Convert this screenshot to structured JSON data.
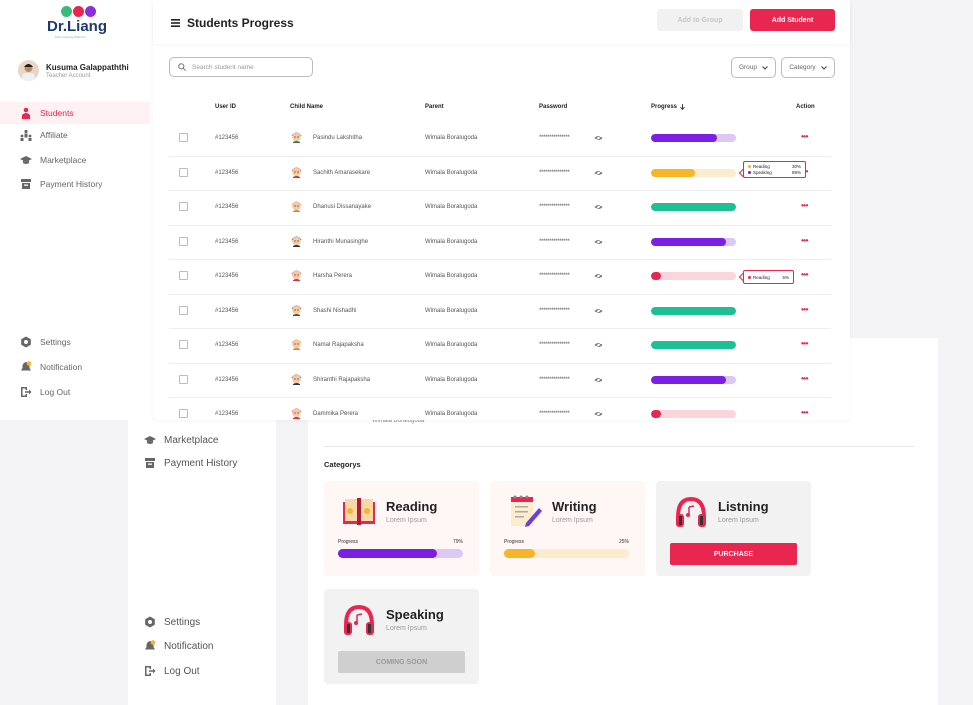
{
  "brand": {
    "name": "Dr.Liang",
    "tagline": "Kids Learning Platform",
    "circle_colors": [
      "#3cba7c",
      "#e8264f",
      "#8b2fd9"
    ]
  },
  "user": {
    "name": "Kusuma Galappaththi",
    "role": "Teacher Account"
  },
  "sidebar": {
    "items": [
      {
        "label": "Students",
        "icon": "students-icon",
        "active": true
      },
      {
        "label": "Affiliate",
        "icon": "affiliate-icon"
      },
      {
        "label": "Marketplace",
        "icon": "graduation-cap-icon"
      },
      {
        "label": "Payment History",
        "icon": "payment-history-icon"
      }
    ],
    "bottom": [
      {
        "label": "Settings",
        "icon": "gear-icon"
      },
      {
        "label": "Notification",
        "icon": "bell-icon"
      },
      {
        "label": "Log Out",
        "icon": "logout-icon"
      }
    ]
  },
  "header": {
    "title": "Students Progress",
    "add_group_label": "Add to Group",
    "add_student_label": "Add Student"
  },
  "search": {
    "placeholder": "Search student name"
  },
  "filters": {
    "group_label": "Group",
    "category_label": "Category"
  },
  "table": {
    "headers": {
      "user_id": "User ID",
      "child": "Child Name",
      "parent": "Parent",
      "password": "Password",
      "progress": "Progress",
      "action": "Action"
    },
    "password_mask": "***************",
    "action_label": "•••",
    "rows": [
      {
        "id": "#123456",
        "name": "Pasindu Lakshitha",
        "parent": "Wimala Boralugoda",
        "progress": 0.78,
        "color": "#7b1fe4",
        "track": "#dcc8f5"
      },
      {
        "id": "#123456",
        "name": "Sachith Amarasekare",
        "parent": "Wimala Boralugoda",
        "progress": 0.52,
        "color": "#f8b52a",
        "track": "#fbeccd"
      },
      {
        "id": "#123456",
        "name": "Dhanusi Dissanayake",
        "parent": "Wimala Boralugoda",
        "progress": 1.0,
        "color": "#1dbf94",
        "track": "#c9efe4"
      },
      {
        "id": "#123456",
        "name": "Hiranthi Munasinghe",
        "parent": "Wimala Boralugoda",
        "progress": 0.88,
        "color": "#7b1fe4",
        "track": "#dcc8f5"
      },
      {
        "id": "#123456",
        "name": "Harsha Perera",
        "parent": "Wimala Boralugoda",
        "progress": 0.1,
        "color": "#e8264f",
        "track": "#fcd5dc"
      },
      {
        "id": "#123456",
        "name": "Shashi Nishadhi",
        "parent": "Wimala Boralugoda",
        "progress": 1.0,
        "color": "#1dbf94",
        "track": "#c9efe4"
      },
      {
        "id": "#123456",
        "name": "Namal Rajapaksha",
        "parent": "Wimala Boralugoda",
        "progress": 1.0,
        "color": "#1dbf94",
        "track": "#c9efe4"
      },
      {
        "id": "#123456",
        "name": "Shiranthi Rajapaksha",
        "parent": "Wimala Boralugoda",
        "progress": 0.88,
        "color": "#7b1fe4",
        "track": "#dcc8f5"
      },
      {
        "id": "#123456",
        "name": "Dammika Perera",
        "parent": "Wimala Boralugoda",
        "progress": 0.1,
        "color": "#e8264f",
        "track": "#fcd5dc"
      }
    ]
  },
  "tooltips": {
    "row2": [
      {
        "label": "Reading",
        "value": "30%",
        "color": "#f8b52a"
      },
      {
        "label": "Speaking",
        "value": "89%",
        "color": "#7b1fe4"
      }
    ],
    "row5": [
      {
        "label": "Reading",
        "value": "5%",
        "color": "#e8264f"
      }
    ]
  },
  "back": {
    "sidebar": [
      {
        "label": "Marketplace",
        "icon": "graduation-cap-icon"
      },
      {
        "label": "Payment History",
        "icon": "payment-history-icon"
      }
    ],
    "sidebar_bottom": [
      {
        "label": "Settings",
        "icon": "gear-icon"
      },
      {
        "label": "Notification",
        "icon": "bell-icon"
      },
      {
        "label": "Log Out",
        "icon": "logout-icon"
      }
    ],
    "parent_text": "Wimala Boralugoda",
    "categories_heading": "Categorys",
    "cards": [
      {
        "title": "Reading",
        "sub": "Lorem Ipsum",
        "progress_label": "Progress",
        "progress_text": "79%",
        "progress": 0.79,
        "color": "#7b1fe4",
        "track": "#dcc8f5",
        "icon": "book-icon"
      },
      {
        "title": "Writing",
        "sub": "Lorem Ipsum",
        "progress_label": "Progress",
        "progress_text": "25%",
        "progress": 0.25,
        "color": "#f8b52a",
        "track": "#fbeccd",
        "icon": "notepad-pencil-icon"
      },
      {
        "title": "Listning",
        "sub": "Lorem Ipsum",
        "button": "PURCHASE",
        "icon": "headphones-icon"
      },
      {
        "title": "Speaking",
        "sub": "Lorem Ipsum",
        "button": "COMING SOON",
        "icon": "headphones-icon"
      }
    ]
  }
}
